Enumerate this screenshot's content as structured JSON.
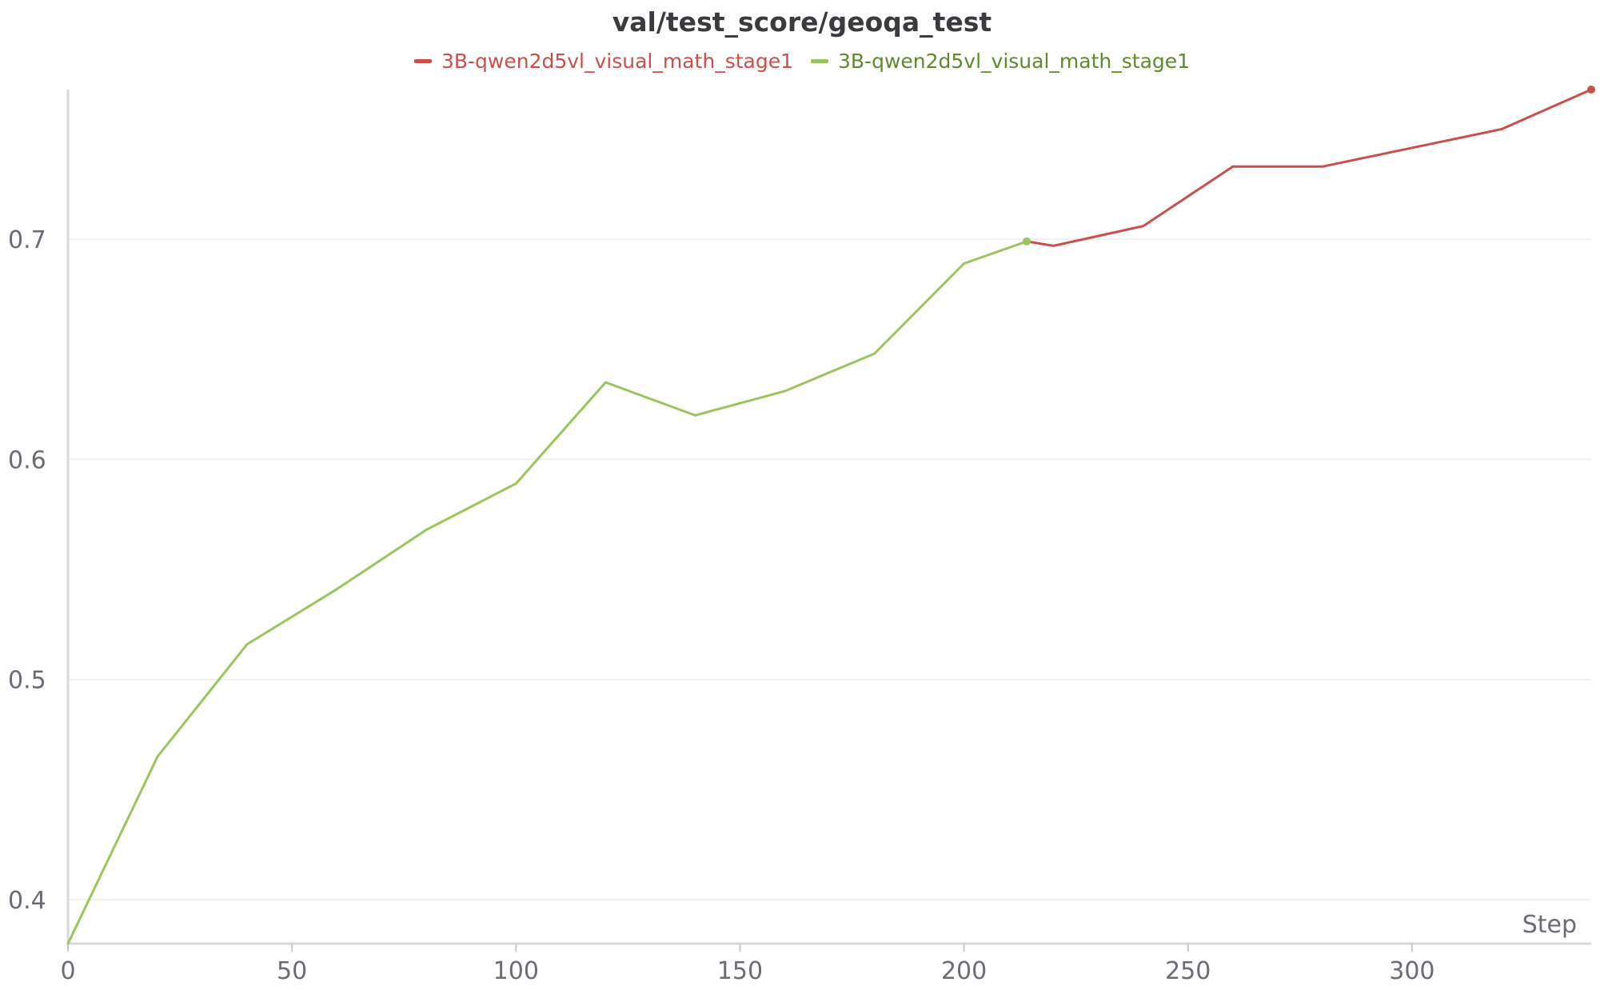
{
  "chart_data": {
    "type": "line",
    "title": "val/test_score/geoqa_test",
    "xlabel": "Step",
    "ylabel": "",
    "xlim": [
      0,
      340
    ],
    "ylim": [
      0.38,
      0.768
    ],
    "xticks": [
      0,
      50,
      100,
      150,
      200,
      250,
      300
    ],
    "yticks": [
      0.4,
      0.5,
      0.6,
      0.7
    ],
    "grid": true,
    "legend_position": "top-center",
    "series": [
      {
        "name": "3B-qwen2d5vl_visual_math_stage1",
        "color": "#c94f4a",
        "x": [
          214,
          220,
          240,
          260,
          270,
          280,
          320,
          340
        ],
        "y": [
          0.699,
          0.697,
          0.706,
          0.733,
          0.733,
          0.733,
          0.75,
          0.768
        ]
      },
      {
        "name": "3B-qwen2d5vl_visual_math_stage1",
        "color": "#9bc45a",
        "x": [
          0,
          20,
          40,
          60,
          80,
          100,
          120,
          140,
          160,
          180,
          200,
          214
        ],
        "y": [
          0.38,
          0.465,
          0.516,
          0.541,
          0.568,
          0.589,
          0.635,
          0.62,
          0.631,
          0.648,
          0.689,
          0.699
        ]
      }
    ]
  }
}
